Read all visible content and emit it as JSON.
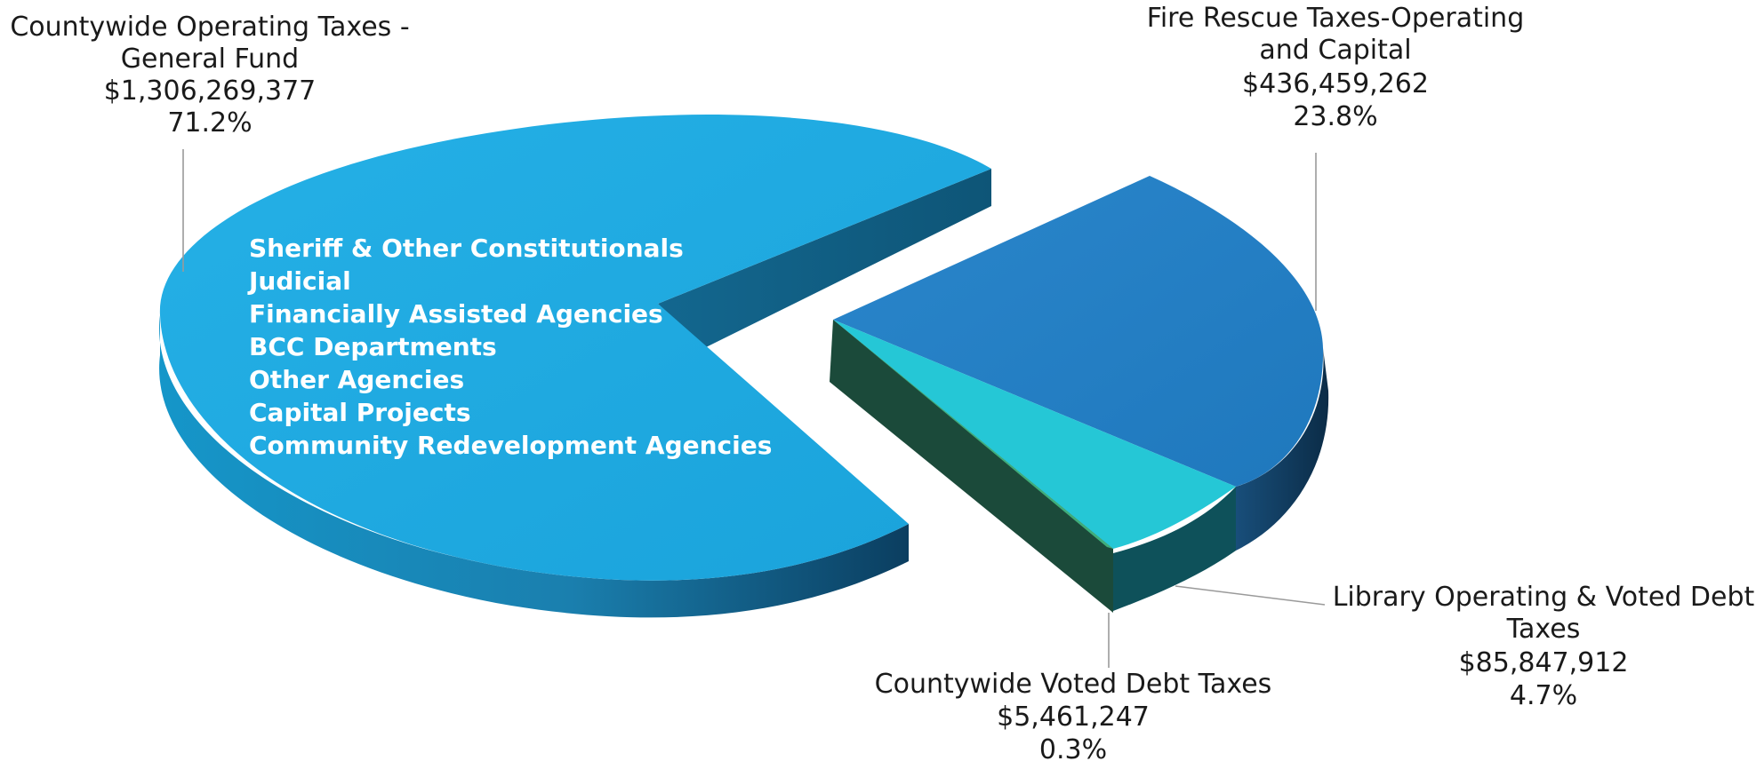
{
  "chart_data": {
    "type": "pie",
    "style": "3d-exploded",
    "slices": [
      {
        "name": "Countywide Operating Taxes - General Fund",
        "label_lines": [
          "Countywide Operating Taxes -",
          "General Fund"
        ],
        "value_label": "$1,306,269,377",
        "value": 1306269377,
        "percent_label": "71.2%",
        "percent": 71.2,
        "color": "#1FA7DE",
        "side_color": "#1A84B3",
        "breakdown": [
          "Sheriff & Other  Constitutionals",
          "Judicial",
          "Financially Assisted Agencies",
          "BCC Departments",
          "Other Agencies",
          "Capital Projects",
          "Community Redevelopment Agencies"
        ]
      },
      {
        "name": "Fire Rescue Taxes-Operating and Capital",
        "label_lines": [
          "Fire Rescue Taxes-Operating",
          "and Capital"
        ],
        "value_label": "$436,459,262",
        "value": 436459262,
        "percent_label": "23.8%",
        "percent": 23.8,
        "color": "#2381C6",
        "side_color": "#0F3E62"
      },
      {
        "name": "Library Operating & Voted Debt Taxes",
        "label_lines": [
          "Library Operating & Voted Debt",
          "Taxes"
        ],
        "value_label": "$85,847,912",
        "value": 85847912,
        "percent_label": "4.7%",
        "percent": 4.7,
        "color": "#25C7D6",
        "side_color": "#0D4F57"
      },
      {
        "name": "Countywide Voted Debt Taxes",
        "label_lines": [
          "Countywide Voted Debt Taxes"
        ],
        "value_label": "$5,461,247",
        "value": 5461247,
        "percent_label": "0.3%",
        "percent": 0.3,
        "color": "#3FAE7A",
        "side_color": "#1B4A3A"
      }
    ]
  }
}
